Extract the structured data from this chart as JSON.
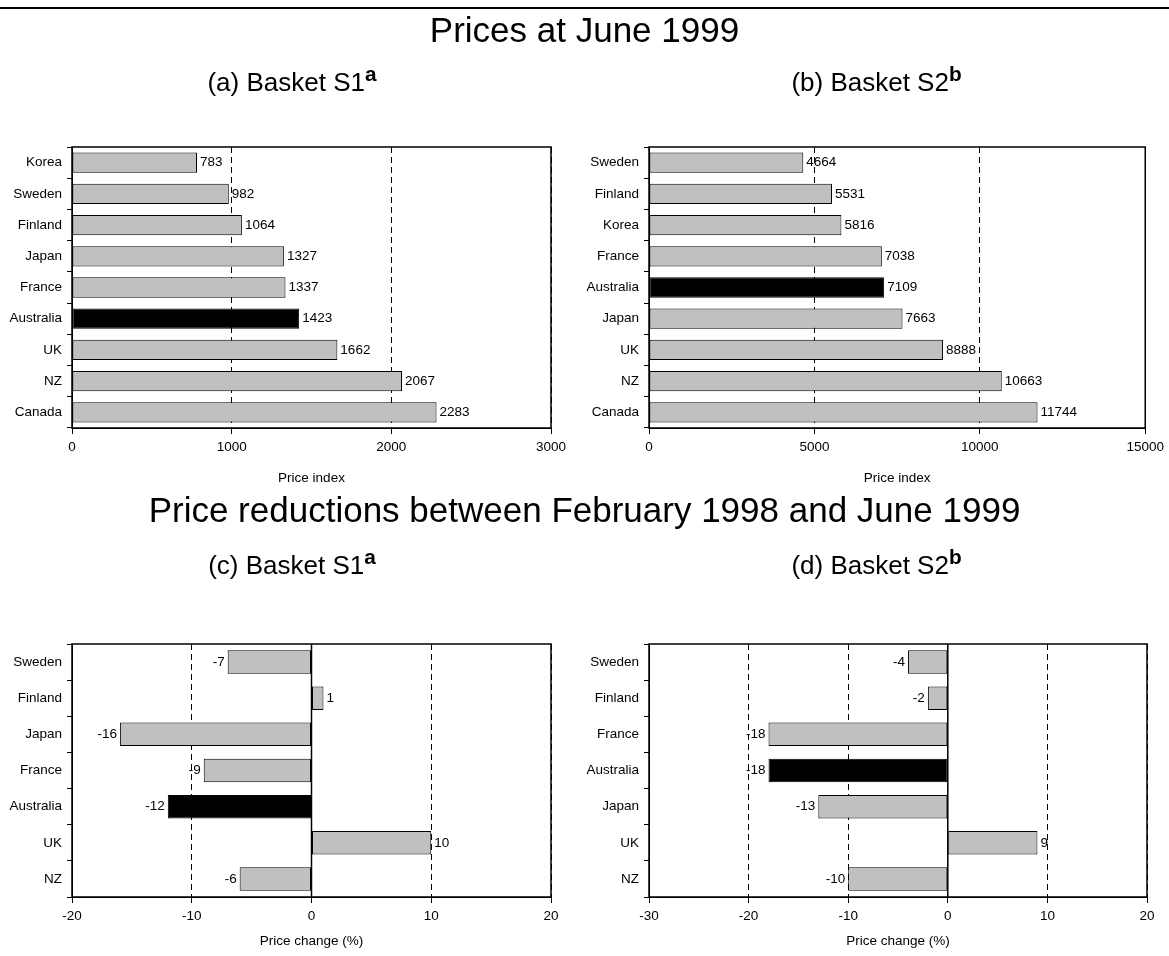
{
  "chart_data": [
    {
      "type": "bar",
      "orientation": "horizontal",
      "title": "Prices at June 1999",
      "subtitle": "(a) Basket S1$^{a}$",
      "xlabel": "Price index",
      "categories": [
        "Korea",
        "Sweden",
        "Finland",
        "Japan",
        "France",
        "Australia",
        "UK",
        "NZ",
        "Canada"
      ],
      "values": [
        783,
        982,
        1064,
        1327,
        1337,
        1423,
        1662,
        2067,
        2283
      ],
      "colors": [
        "#c0c0c0",
        "#c0c0c0",
        "#c0c0c0",
        "#c0c0c0",
        "#c0c0c0",
        "#000000",
        "#c0c0c0",
        "#c0c0c0",
        "#c0c0c0"
      ],
      "xlim": [
        0,
        3000
      ],
      "xticks": [
        0,
        1000,
        2000,
        3000
      ],
      "grid": "x",
      "data_labels": true
    },
    {
      "type": "bar",
      "orientation": "horizontal",
      "subtitle": "(b) Basket S2$^{b}$",
      "xlabel": "Price index",
      "categories": [
        "Sweden",
        "Finland",
        "Korea",
        "France",
        "Australia",
        "Japan",
        "UK",
        "NZ",
        "Canada"
      ],
      "values": [
        4664,
        5531,
        5816,
        7038,
        7109,
        7663,
        8888,
        10663,
        11744
      ],
      "colors": [
        "#c0c0c0",
        "#c0c0c0",
        "#c0c0c0",
        "#c0c0c0",
        "#000000",
        "#c0c0c0",
        "#c0c0c0",
        "#c0c0c0",
        "#c0c0c0"
      ],
      "xlim": [
        0,
        15000
      ],
      "xticks": [
        0,
        5000,
        10000,
        15000
      ],
      "grid": "x",
      "data_labels": true
    },
    {
      "type": "bar",
      "orientation": "horizontal",
      "title": "Price reductions between February 1998 and June 1999",
      "subtitle": "(c) Basket S1$^{a}$",
      "xlabel": "Price change (%)",
      "categories": [
        "Sweden",
        "Finland",
        "Japan",
        "France",
        "Australia",
        "UK",
        "NZ"
      ],
      "values": [
        -7,
        1,
        -16,
        -9,
        -12,
        10,
        -6
      ],
      "colors": [
        "#c0c0c0",
        "#c0c0c0",
        "#c0c0c0",
        "#c0c0c0",
        "#000000",
        "#c0c0c0",
        "#c0c0c0"
      ],
      "xlim": [
        -20,
        20
      ],
      "xticks": [
        -20,
        -10,
        0,
        10,
        20
      ],
      "grid": "x",
      "data_labels": true
    },
    {
      "type": "bar",
      "orientation": "horizontal",
      "subtitle": "(d) Basket S2$^{b}$",
      "xlabel": "Price change (%)",
      "categories": [
        "Sweden",
        "Finland",
        "France",
        "Australia",
        "Japan",
        "UK",
        "NZ"
      ],
      "values": [
        -4,
        -2,
        -18,
        -18,
        -13,
        9,
        -10
      ],
      "colors": [
        "#c0c0c0",
        "#c0c0c0",
        "#c0c0c0",
        "#000000",
        "#c0c0c0",
        "#c0c0c0",
        "#c0c0c0"
      ],
      "xlim": [
        -30,
        20
      ],
      "xticks": [
        -30,
        -20,
        -10,
        0,
        10,
        20
      ],
      "grid": "x",
      "data_labels": true
    }
  ]
}
